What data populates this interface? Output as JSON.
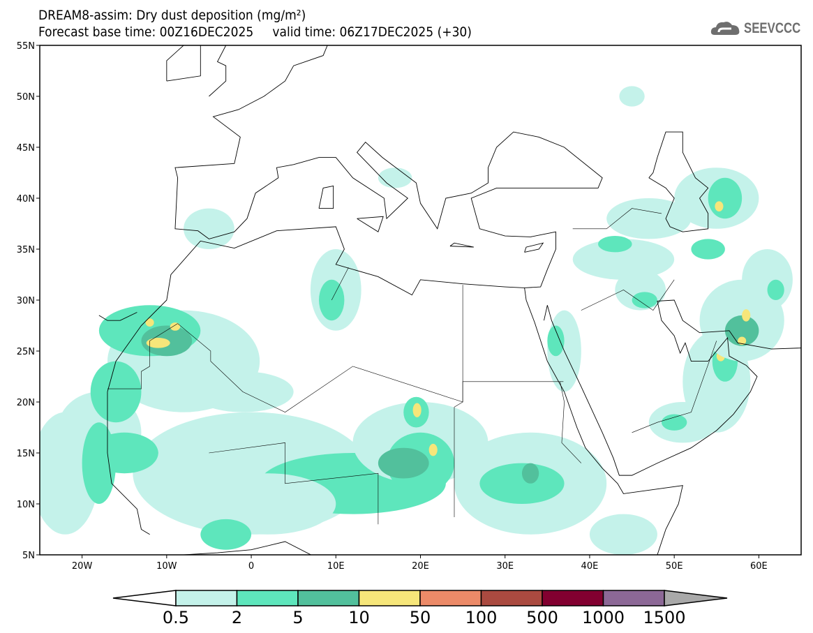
{
  "header": {
    "title": "DREAM8-assim: Dry dust deposition (mg/m²)",
    "subtitle": "Forecast base time: 00Z16DEC2025     valid time: 06Z17DEC2025 (+30)",
    "logo_text": "SEEVCCC"
  },
  "map": {
    "lon_range": [
      -25,
      65
    ],
    "lat_range": [
      5,
      55
    ],
    "lat_labels": [
      "55N",
      "50N",
      "45N",
      "40N",
      "35N",
      "30N",
      "25N",
      "20N",
      "15N",
      "10N",
      "5N"
    ],
    "lat_values": [
      55,
      50,
      45,
      40,
      35,
      30,
      25,
      20,
      15,
      10,
      5
    ],
    "lon_labels": [
      "20W",
      "10W",
      "0",
      "10E",
      "20E",
      "30E",
      "40E",
      "50E",
      "60E"
    ],
    "lon_values": [
      -20,
      -10,
      0,
      10,
      20,
      30,
      40,
      50,
      60
    ]
  },
  "colorbar": {
    "labels": [
      "0.5",
      "2",
      "5",
      "10",
      "50",
      "100",
      "500",
      "1000",
      "1500"
    ],
    "colors": [
      "#ffffff",
      "#c4f2ea",
      "#5ee6bc",
      "#52c09c",
      "#f6e67a",
      "#ec8a68",
      "#aa4a40",
      "#820030",
      "#8c6896",
      "#a9a9a9"
    ]
  }
}
